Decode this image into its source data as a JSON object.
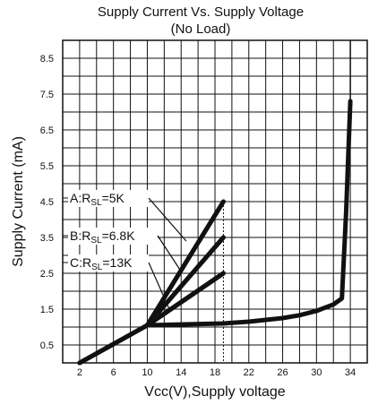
{
  "chart_data": {
    "type": "line",
    "title": "Supply Current Vs. Supply Voltage",
    "subtitle": "(No Load)",
    "xlabel": "Vcc(V),Supply voltage",
    "ylabel": "Supply Current (mA)",
    "xlim": [
      0,
      36
    ],
    "ylim": [
      0,
      9
    ],
    "x_ticks": [
      "2",
      "6",
      "10",
      "14",
      "18",
      "22",
      "26",
      "30",
      "34"
    ],
    "y_ticks": [
      "0.5",
      "1.5",
      "2.5",
      "3.5",
      "4.5",
      "5.5",
      "6.5",
      "7.5",
      "8.5"
    ],
    "grid": true,
    "reference_line_x": 19,
    "series": [
      {
        "x": [
          2,
          10,
          19
        ],
        "y": [
          0,
          1.05,
          4.5
        ]
      },
      {
        "x": [
          2,
          10,
          19
        ],
        "y": [
          0,
          1.05,
          3.5
        ]
      },
      {
        "x": [
          2,
          10,
          19
        ],
        "y": [
          0,
          1.05,
          2.5
        ]
      },
      {
        "x": [
          10,
          19
        ],
        "y": [
          1.05,
          4.5
        ]
      },
      {
        "x": [
          10,
          19
        ],
        "y": [
          1.05,
          3.5
        ]
      },
      {
        "x": [
          10,
          19
        ],
        "y": [
          1.05,
          2.5
        ]
      },
      {
        "x": [
          2,
          10,
          19,
          22,
          26,
          28,
          30,
          32,
          33,
          33.5,
          34
        ],
        "y": [
          0,
          1.05,
          1.1,
          1.15,
          1.25,
          1.33,
          1.45,
          1.63,
          1.8,
          4.2,
          7.3
        ]
      }
    ],
    "annotations": [
      {
        "label": "A:R",
        "sub": "SL",
        "tail": "=5K",
        "target": [
          14.6,
          3.4
        ]
      },
      {
        "label": "B:R",
        "sub": "SL",
        "tail": "=6.8K",
        "target": [
          14.0,
          2.55
        ]
      },
      {
        "label": "C:R",
        "sub": "SL",
        "tail": "=13K",
        "target": [
          12.6,
          1.5
        ]
      }
    ],
    "curve_color": "#111111"
  }
}
